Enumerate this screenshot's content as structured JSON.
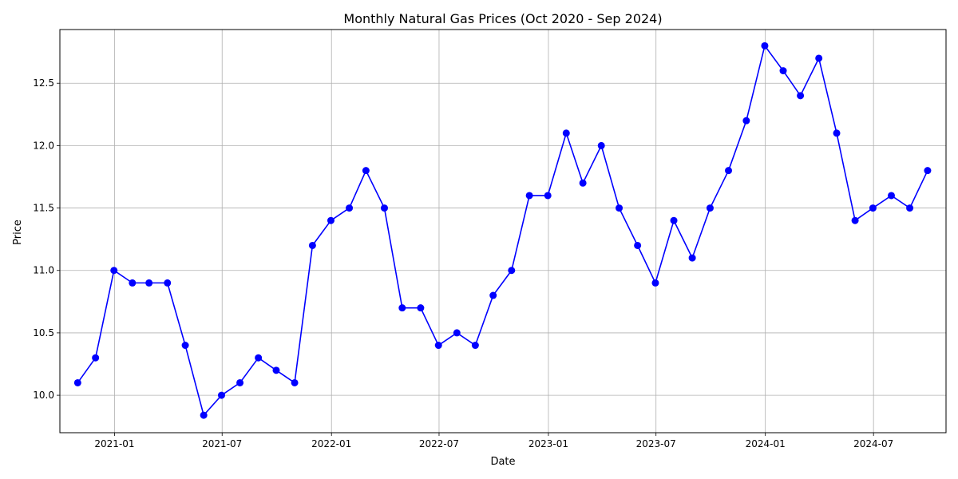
{
  "chart_data": {
    "type": "line",
    "title": "Monthly Natural Gas Prices (Oct 2020 - Sep 2024)",
    "xlabel": "Date",
    "ylabel": "Price",
    "x_ticks": [
      "2021-01",
      "2021-07",
      "2022-01",
      "2022-07",
      "2023-01",
      "2023-07",
      "2024-01",
      "2024-07"
    ],
    "y_ticks": [
      "10.0",
      "10.5",
      "11.0",
      "11.5",
      "12.0",
      "12.5"
    ],
    "xlim": [
      "2020-10-01",
      "2024-10-31"
    ],
    "ylim": [
      9.7,
      12.93
    ],
    "grid": true,
    "line_color": "#0000ff",
    "marker": "circle",
    "series": [
      {
        "x": [
          "2020-10-31",
          "2020-11-30",
          "2020-12-31",
          "2021-01-31",
          "2021-02-28",
          "2021-03-31",
          "2021-04-30",
          "2021-05-31",
          "2021-06-30",
          "2021-07-31",
          "2021-08-31",
          "2021-09-30",
          "2021-10-31",
          "2021-11-30",
          "2021-12-31",
          "2022-01-31",
          "2022-02-28",
          "2022-03-31",
          "2022-04-30",
          "2022-05-31",
          "2022-06-30",
          "2022-07-31",
          "2022-08-31",
          "2022-09-30",
          "2022-10-31",
          "2022-11-30",
          "2022-12-31",
          "2023-01-31",
          "2023-02-28",
          "2023-03-31",
          "2023-04-30",
          "2023-05-31",
          "2023-06-30",
          "2023-07-31",
          "2023-08-31",
          "2023-09-30",
          "2023-10-31",
          "2023-11-30",
          "2023-12-31",
          "2024-01-31",
          "2024-02-29",
          "2024-03-31",
          "2024-04-30",
          "2024-05-31",
          "2024-06-30",
          "2024-07-31",
          "2024-08-31",
          "2024-09-30"
        ],
        "values": [
          10.1,
          10.3,
          11.0,
          10.9,
          10.9,
          10.9,
          10.4,
          9.84,
          10.0,
          10.1,
          10.3,
          10.2,
          10.1,
          11.2,
          11.4,
          11.5,
          11.8,
          11.5,
          10.7,
          10.7,
          10.4,
          10.5,
          10.4,
          10.8,
          11.0,
          11.6,
          11.6,
          12.1,
          11.7,
          12.0,
          11.5,
          11.2,
          10.9,
          11.4,
          11.1,
          11.5,
          11.8,
          12.2,
          12.8,
          12.6,
          12.4,
          12.7,
          12.1,
          11.4,
          11.5,
          11.6,
          11.5,
          11.8
        ]
      }
    ]
  }
}
